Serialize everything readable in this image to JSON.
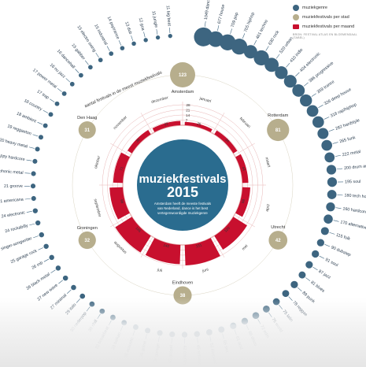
{
  "title": "muziekfestivals",
  "year": "2015",
  "subtitle_lines": [
    "Amsterdam heeft de meeste festivals",
    "van Nederland, dance is het best",
    "vertegenwoordigde muziekgenre"
  ],
  "colors": {
    "genre": "#3d6580",
    "city": "#b7ae8d",
    "month": "#c8102e",
    "center": "#2a6c8f",
    "ring": "#e8b5b5"
  },
  "legend": {
    "items": [
      {
        "label": "muziekgenre",
        "color": "#3d6580",
        "shape": "circle"
      },
      {
        "label": "muziekfestivals per stad",
        "color": "#b7ae8d",
        "shape": "circle"
      },
      {
        "label": "muziekfestivals per maand",
        "color": "#c8102e",
        "shape": "rect"
      }
    ],
    "source": "BRON: FESTIVAL ATLAS EN BLOEMENDAAL (TABEL)"
  },
  "genres": [
    {
      "name": "dance",
      "count": 1049
    },
    {
      "name": "house",
      "count": 677
    },
    {
      "name": "pop",
      "count": 709
    },
    {
      "name": "hiphop",
      "count": 705
    },
    {
      "name": "techno",
      "count": 461
    },
    {
      "name": "rock",
      "count": 630
    },
    {
      "name": "urban",
      "count": 520
    },
    {
      "name": "indie",
      "count": 410
    },
    {
      "name": "electronic",
      "count": 404
    },
    {
      "name": "progressive",
      "count": 386
    },
    {
      "name": "trance",
      "count": 359
    },
    {
      "name": "deep house",
      "count": 326
    },
    {
      "name": "rap/hiphop",
      "count": 318
    },
    {
      "name": "hardstyle",
      "count": 282
    },
    {
      "name": "funk",
      "count": 265
    },
    {
      "name": "metal",
      "count": 222
    },
    {
      "name": "drum and bass",
      "count": 200
    },
    {
      "name": "soul",
      "count": 195
    },
    {
      "name": "tech house",
      "count": 180
    },
    {
      "name": "hardcore",
      "count": 160
    },
    {
      "name": "alternative",
      "count": 170
    },
    {
      "name": "folk",
      "count": 115
    },
    {
      "name": "dubstep",
      "count": 90
    },
    {
      "name": "soul",
      "count": 91
    },
    {
      "name": "jazz",
      "count": 87
    },
    {
      "name": "blues",
      "count": 81
    },
    {
      "name": "punk",
      "count": 89
    },
    {
      "name": "reggae",
      "count": 78
    },
    {
      "name": "latin",
      "count": 75
    },
    {
      "name": "world",
      "count": 76
    },
    {
      "name": "edm",
      "count": 72
    },
    {
      "name": "disco",
      "count": 66
    },
    {
      "name": "acid",
      "count": 61
    },
    {
      "name": "ska",
      "count": 55
    },
    {
      "name": "klassiek",
      "count": 52
    },
    {
      "name": "schlager",
      "count": 45
    },
    {
      "name": "country",
      "count": 42
    },
    {
      "name": "gospel",
      "count": 40
    },
    {
      "name": "garage",
      "count": 38
    },
    {
      "name": "grime",
      "count": 36
    },
    {
      "name": "acoustic",
      "count": 35
    },
    {
      "name": "balkan",
      "count": 33
    },
    {
      "name": "breakbeat",
      "count": 32
    },
    {
      "name": "chill",
      "count": 30
    },
    {
      "name": "nederpop",
      "count": 30
    },
    {
      "name": "italo",
      "count": 29
    },
    {
      "name": "minimal",
      "count": 27
    },
    {
      "name": "new wave",
      "count": 27
    },
    {
      "name": "black metal",
      "count": 26
    },
    {
      "name": "rnb",
      "count": 26
    },
    {
      "name": "garage rock",
      "count": 25
    },
    {
      "name": "singer-songwriter",
      "count": 25
    },
    {
      "name": "rockabilly",
      "count": 24
    },
    {
      "name": "electronic",
      "count": 24
    },
    {
      "name": "americana",
      "count": 21
    },
    {
      "name": "groove",
      "count": 21
    },
    {
      "name": "symphonic metal",
      "count": 21
    },
    {
      "name": "happy hardcore",
      "count": 20
    },
    {
      "name": "heavy metal",
      "count": 20
    },
    {
      "name": "reggaeton",
      "count": 19
    },
    {
      "name": "ambient",
      "count": 18
    },
    {
      "name": "country",
      "count": 18
    },
    {
      "name": "trap",
      "count": 17
    },
    {
      "name": "power metal",
      "count": 17
    },
    {
      "name": "nu jazz",
      "count": 16
    },
    {
      "name": "dancehall",
      "count": 16
    },
    {
      "name": "gabber",
      "count": 15
    },
    {
      "name": "electro swing",
      "count": 15
    },
    {
      "name": "industrial",
      "count": 15
    },
    {
      "name": "psytrance",
      "count": 14
    },
    {
      "name": "dub",
      "count": 13
    },
    {
      "name": "goa",
      "count": 12
    },
    {
      "name": "jungle",
      "count": 11
    },
    {
      "name": "big beat",
      "count": 11
    }
  ],
  "cities": [
    {
      "name": "Amsterdam",
      "count": 123
    },
    {
      "name": "Rotterdam",
      "count": 81
    },
    {
      "name": "Utrecht",
      "count": 42
    },
    {
      "name": "Eindhoven",
      "count": 38
    },
    {
      "name": "Groningen",
      "count": 32
    },
    {
      "name": "Den Haag",
      "count": 31
    }
  ],
  "cities_note": "aantal festivals in de meest muziekfestivals",
  "months": [
    {
      "name": "januari",
      "count": 25
    },
    {
      "name": "februari",
      "count": 34
    },
    {
      "name": "maart",
      "count": 44
    },
    {
      "name": "april",
      "count": 58
    },
    {
      "name": "mei",
      "count": 120
    },
    {
      "name": "juni",
      "count": 151
    },
    {
      "name": "juli",
      "count": 142
    },
    {
      "name": "augustus",
      "count": 145
    },
    {
      "name": "september",
      "count": 98
    },
    {
      "name": "oktober",
      "count": 71
    },
    {
      "name": "november",
      "count": 38
    },
    {
      "name": "december",
      "count": 32
    }
  ],
  "month_scale": [
    7,
    14,
    21,
    28
  ],
  "month_scale_labels": [
    "7",
    "14",
    "21",
    "28"
  ]
}
